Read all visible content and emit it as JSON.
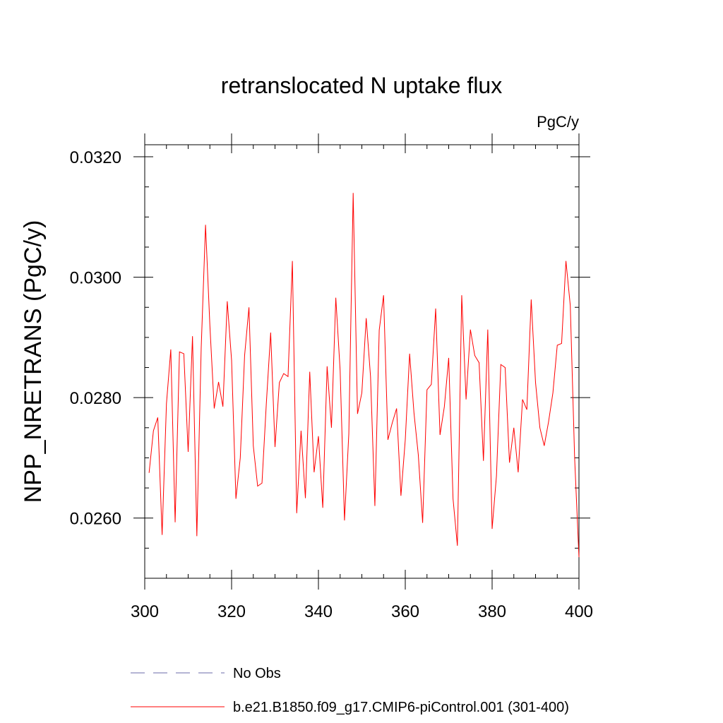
{
  "chart_data": {
    "type": "line",
    "title": "retranslocated N uptake flux",
    "units_label": "PgC/y",
    "xlabel": "",
    "ylabel": "NPP_NRETRANS  (PgC/y)",
    "xlim": [
      300,
      400
    ],
    "ylim": [
      0.025,
      0.0322
    ],
    "x_ticks": [
      300,
      320,
      340,
      360,
      380,
      400
    ],
    "x_tick_labels": [
      "300",
      "320",
      "340",
      "360",
      "380",
      "400"
    ],
    "y_ticks": [
      0.026,
      0.028,
      0.03,
      0.032
    ],
    "y_tick_labels": [
      "0.0260",
      "0.0280",
      "0.0300",
      "0.0320"
    ],
    "grid": false,
    "legend_position": "bottom",
    "series": [
      {
        "name": "No Obs",
        "color": "#6a6aaa",
        "dash": "dashed",
        "x": [],
        "values": []
      },
      {
        "name": "b.e21.B1850.f09_g17.CMIP6-piControl.001 (301-400)",
        "color": "#ff0000",
        "dash": "solid",
        "x": [
          301,
          302,
          303,
          304,
          305,
          306,
          307,
          308,
          309,
          310,
          311,
          312,
          313,
          314,
          315,
          316,
          317,
          318,
          319,
          320,
          321,
          322,
          323,
          324,
          325,
          326,
          327,
          328,
          329,
          330,
          331,
          332,
          333,
          334,
          335,
          336,
          337,
          338,
          339,
          340,
          341,
          342,
          343,
          344,
          345,
          346,
          347,
          348,
          349,
          350,
          351,
          352,
          353,
          354,
          355,
          356,
          357,
          358,
          359,
          360,
          361,
          362,
          363,
          364,
          365,
          366,
          367,
          368,
          369,
          370,
          371,
          372,
          373,
          374,
          375,
          376,
          377,
          378,
          379,
          380,
          381,
          382,
          383,
          384,
          385,
          386,
          387,
          388,
          389,
          390,
          391,
          392,
          393,
          394,
          395,
          396,
          397,
          398,
          399,
          400
        ],
        "values": [
          0.02675,
          0.02745,
          0.02767,
          0.02572,
          0.0279,
          0.0288,
          0.02593,
          0.02876,
          0.02873,
          0.0271,
          0.02902,
          0.0257,
          0.02882,
          0.03087,
          0.0292,
          0.02782,
          0.02826,
          0.02785,
          0.0296,
          0.02862,
          0.02632,
          0.027,
          0.0287,
          0.0295,
          0.0272,
          0.02653,
          0.02658,
          0.0279,
          0.02908,
          0.02718,
          0.02825,
          0.0284,
          0.02835,
          0.03027,
          0.02608,
          0.02745,
          0.02633,
          0.02843,
          0.02676,
          0.02736,
          0.02617,
          0.02852,
          0.0275,
          0.02966,
          0.02845,
          0.02596,
          0.0274,
          0.0314,
          0.02773,
          0.02808,
          0.02932,
          0.02835,
          0.0262,
          0.02912,
          0.0297,
          0.0273,
          0.02758,
          0.02782,
          0.02637,
          0.0273,
          0.02873,
          0.02775,
          0.02705,
          0.02592,
          0.02813,
          0.02822,
          0.02948,
          0.02738,
          0.02785,
          0.02866,
          0.02632,
          0.02554,
          0.0297,
          0.02797,
          0.02913,
          0.0287,
          0.02858,
          0.02695,
          0.02913,
          0.02582,
          0.0267,
          0.02855,
          0.0285,
          0.02692,
          0.0275,
          0.02676,
          0.02797,
          0.0278,
          0.02963,
          0.02825,
          0.0275,
          0.0272,
          0.0276,
          0.02808,
          0.02887,
          0.0289,
          0.03027,
          0.02953,
          0.027,
          0.02535
        ]
      }
    ]
  }
}
